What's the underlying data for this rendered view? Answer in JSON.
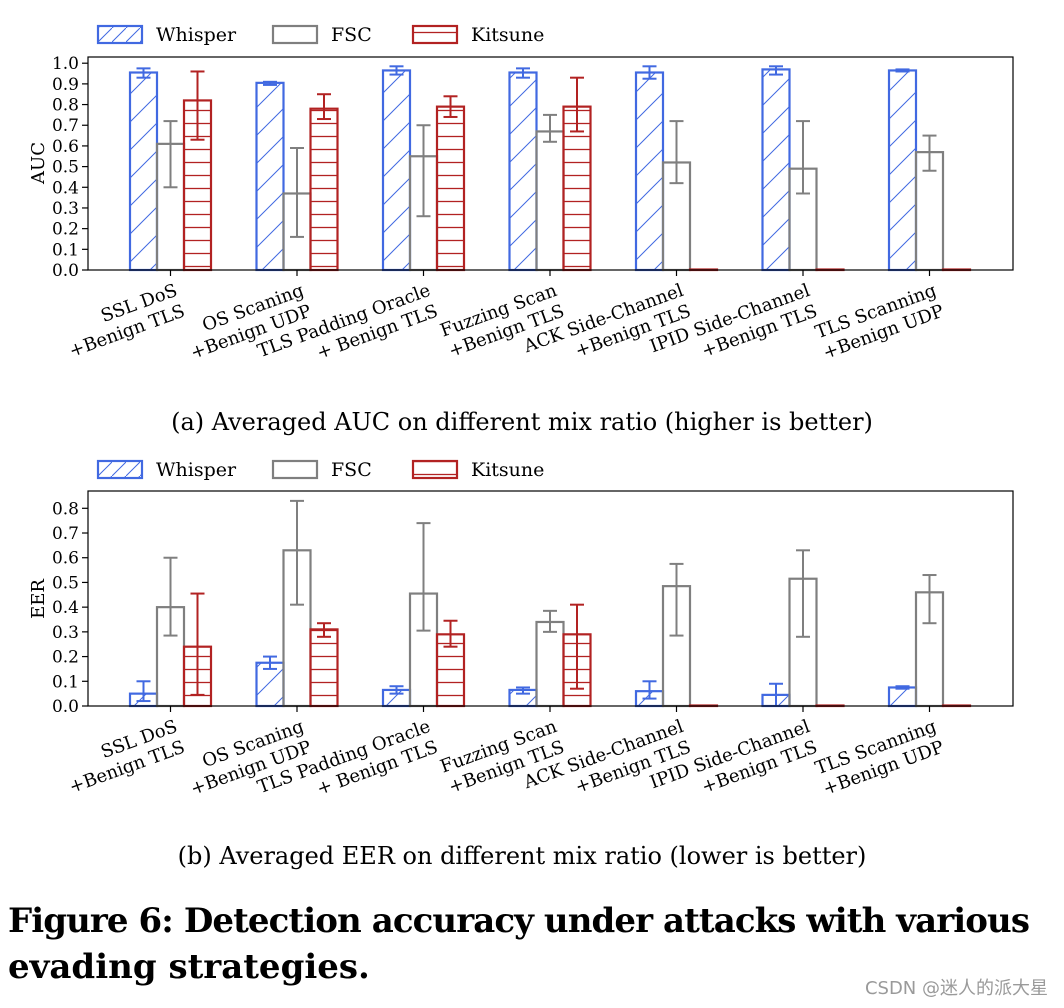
{
  "colors": {
    "Whisper": "#4169e1",
    "FSC": "#7f7f7f",
    "Kitsune": "#b22222",
    "axis": "#000000"
  },
  "chart_data": [
    {
      "type": "bar",
      "ylabel": "AUC",
      "ylim": [
        0,
        1.03
      ],
      "yticks": [
        "0.0",
        "0.1",
        "0.2",
        "0.3",
        "0.4",
        "0.5",
        "0.6",
        "0.7",
        "0.8",
        "0.9",
        "1.0"
      ],
      "legend": [
        "Whisper",
        "FSC",
        "Kitsune"
      ],
      "legend_placement": "top-left, outside",
      "categories": [
        [
          "SSL DoS",
          "+Benign TLS"
        ],
        [
          "OS Scaning",
          "+Benign UDP"
        ],
        [
          "TLS Padding Oracle",
          "+ Benign TLS"
        ],
        [
          "Fuzzing Scan",
          "+Benign TLS"
        ],
        [
          "ACK Side-Channel",
          "+Benign TLS"
        ],
        [
          "IPID Side-Channel",
          "+Benign TLS"
        ],
        [
          "TLS Scanning",
          "+Benign UDP"
        ]
      ],
      "series": [
        {
          "name": "Whisper",
          "values": [
            0.955,
            0.905,
            0.965,
            0.955,
            0.955,
            0.97,
            0.965
          ],
          "err_low": [
            0.93,
            0.895,
            0.945,
            0.93,
            0.925,
            0.945,
            0.96
          ],
          "err_high": [
            0.975,
            0.91,
            0.985,
            0.975,
            0.985,
            0.985,
            0.97
          ]
        },
        {
          "name": "FSC",
          "values": [
            0.61,
            0.37,
            0.55,
            0.67,
            0.52,
            0.49,
            0.57
          ],
          "err_low": [
            0.4,
            0.16,
            0.26,
            0.62,
            0.42,
            0.37,
            0.48
          ],
          "err_high": [
            0.72,
            0.59,
            0.7,
            0.75,
            0.72,
            0.72,
            0.65
          ]
        },
        {
          "name": "Kitsune",
          "values": [
            0.82,
            0.78,
            0.79,
            0.79,
            0.0,
            0.0,
            0.0
          ],
          "err_low": [
            0.63,
            0.73,
            0.74,
            0.67,
            0.0,
            0.0,
            0.0
          ],
          "err_high": [
            0.96,
            0.85,
            0.84,
            0.93,
            0.0,
            0.0,
            0.0
          ]
        }
      ],
      "caption": "(a)  Averaged AUC on different mix ratio (higher is better)"
    },
    {
      "type": "bar",
      "ylabel": "EER",
      "ylim": [
        0,
        0.87
      ],
      "yticks": [
        "0.0",
        "0.1",
        "0.2",
        "0.3",
        "0.4",
        "0.5",
        "0.6",
        "0.7",
        "0.8"
      ],
      "legend": [
        "Whisper",
        "FSC",
        "Kitsune"
      ],
      "legend_placement": "top-left, outside",
      "categories": [
        [
          "SSL DoS",
          "+Benign TLS"
        ],
        [
          "OS Scaning",
          "+Benign UDP"
        ],
        [
          "TLS Padding Oracle",
          "+ Benign TLS"
        ],
        [
          "Fuzzing Scan",
          "+Benign TLS"
        ],
        [
          "ACK Side-Channel",
          "+Benign TLS"
        ],
        [
          "IPID Side-Channel",
          "+Benign TLS"
        ],
        [
          "TLS Scanning",
          "+Benign UDP"
        ]
      ],
      "series": [
        {
          "name": "Whisper",
          "values": [
            0.05,
            0.175,
            0.065,
            0.065,
            0.06,
            0.045,
            0.075
          ],
          "err_low": [
            0.02,
            0.15,
            0.05,
            0.05,
            0.03,
            0.0,
            0.07
          ],
          "err_high": [
            0.1,
            0.2,
            0.08,
            0.075,
            0.1,
            0.09,
            0.08
          ]
        },
        {
          "name": "FSC",
          "values": [
            0.4,
            0.63,
            0.455,
            0.34,
            0.485,
            0.515,
            0.46
          ],
          "err_low": [
            0.285,
            0.41,
            0.305,
            0.3,
            0.285,
            0.28,
            0.335
          ],
          "err_high": [
            0.6,
            0.83,
            0.74,
            0.385,
            0.575,
            0.63,
            0.53
          ]
        },
        {
          "name": "Kitsune",
          "values": [
            0.24,
            0.31,
            0.29,
            0.29,
            0.0,
            0.0,
            0.0
          ],
          "err_low": [
            0.045,
            0.28,
            0.24,
            0.07,
            0.0,
            0.0,
            0.0
          ],
          "err_high": [
            0.455,
            0.335,
            0.345,
            0.41,
            0.0,
            0.0,
            0.0
          ]
        }
      ],
      "caption": "(b)  Averaged EER on different mix ratio (lower is better)"
    }
  ],
  "figure_title_line1": "Figure 6: Detection accuracy under attacks with various",
  "figure_title_line2": "evading strategies.",
  "watermark": "CSDN @迷人的派大星"
}
